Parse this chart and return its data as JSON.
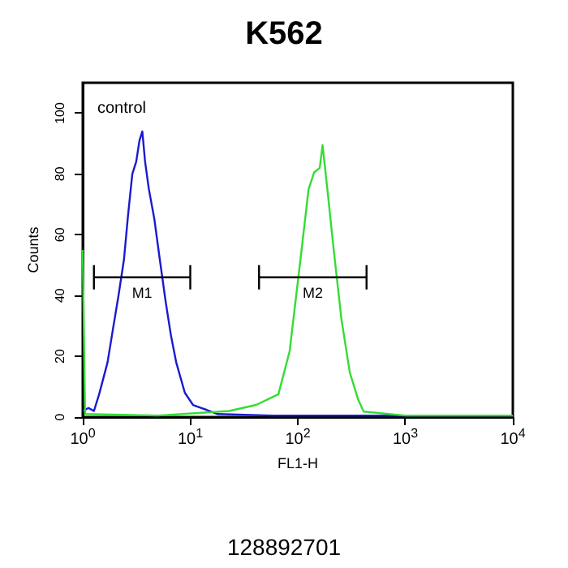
{
  "chart_data": {
    "type": "line",
    "title": "K562",
    "xlabel": "FL1-H",
    "ylabel": "Counts",
    "log": "x",
    "grid": false,
    "legend": false,
    "marker": "none",
    "line_style": "solid",
    "xlim": [
      1,
      10000
    ],
    "xticks": [
      {
        "value": 1,
        "label": "10$^{0}$"
      },
      {
        "value": 10,
        "label": "10$^{1}$"
      },
      {
        "value": 100,
        "label": "10$^{2}$"
      },
      {
        "value": 1000,
        "label": "10$^{3}$"
      },
      {
        "value": 10000,
        "label": "10$^{4}$"
      }
    ],
    "ylim": [
      0,
      110
    ],
    "yticks": [
      0,
      20,
      40,
      60,
      80,
      100
    ],
    "series": [
      {
        "color": "#1a1ad0",
        "x": [
          1,
          1.13,
          1.27,
          1.42,
          1.7,
          1.91,
          2.15,
          2.42,
          2.63,
          2.89,
          3.14,
          3.37,
          3.58,
          3.8,
          4.12,
          4.64,
          5.2,
          5.9,
          6.6,
          7.4,
          8.9,
          10.6,
          12.7,
          18,
          58,
          200,
          10000
        ],
        "values": [
          2,
          3,
          2,
          7.5,
          18,
          29,
          40,
          52,
          66,
          80,
          84,
          91,
          94,
          84,
          75,
          65,
          52,
          38,
          27,
          18,
          8,
          4,
          3,
          1,
          0.5,
          0.5,
          0.5
        ]
      },
      {
        "color": "#33dd33",
        "x": [
          1,
          1.05,
          5,
          23,
          41,
          66,
          84,
          106,
          126,
          142,
          160,
          170,
          191,
          215,
          255,
          305,
          365,
          410,
          1000,
          10000
        ],
        "values": [
          55,
          1,
          0.5,
          2,
          4,
          7.5,
          21.7,
          52,
          75,
          80.5,
          82,
          89.5,
          73,
          55.6,
          32,
          14.6,
          5.7,
          1.8,
          0.5,
          0.5
        ]
      },
      {
        "name": "M1",
        "color": "#000000",
        "x": [
          1.27,
          10
        ],
        "values": [
          46,
          46
        ],
        "errors": [
          4,
          4
        ]
      },
      {
        "name": "M2",
        "color": "#000000",
        "x": [
          43.6,
          436
        ],
        "values": [
          46,
          46
        ],
        "errors": [
          4,
          4
        ]
      }
    ],
    "annotations": [
      "control",
      "128892701"
    ]
  }
}
